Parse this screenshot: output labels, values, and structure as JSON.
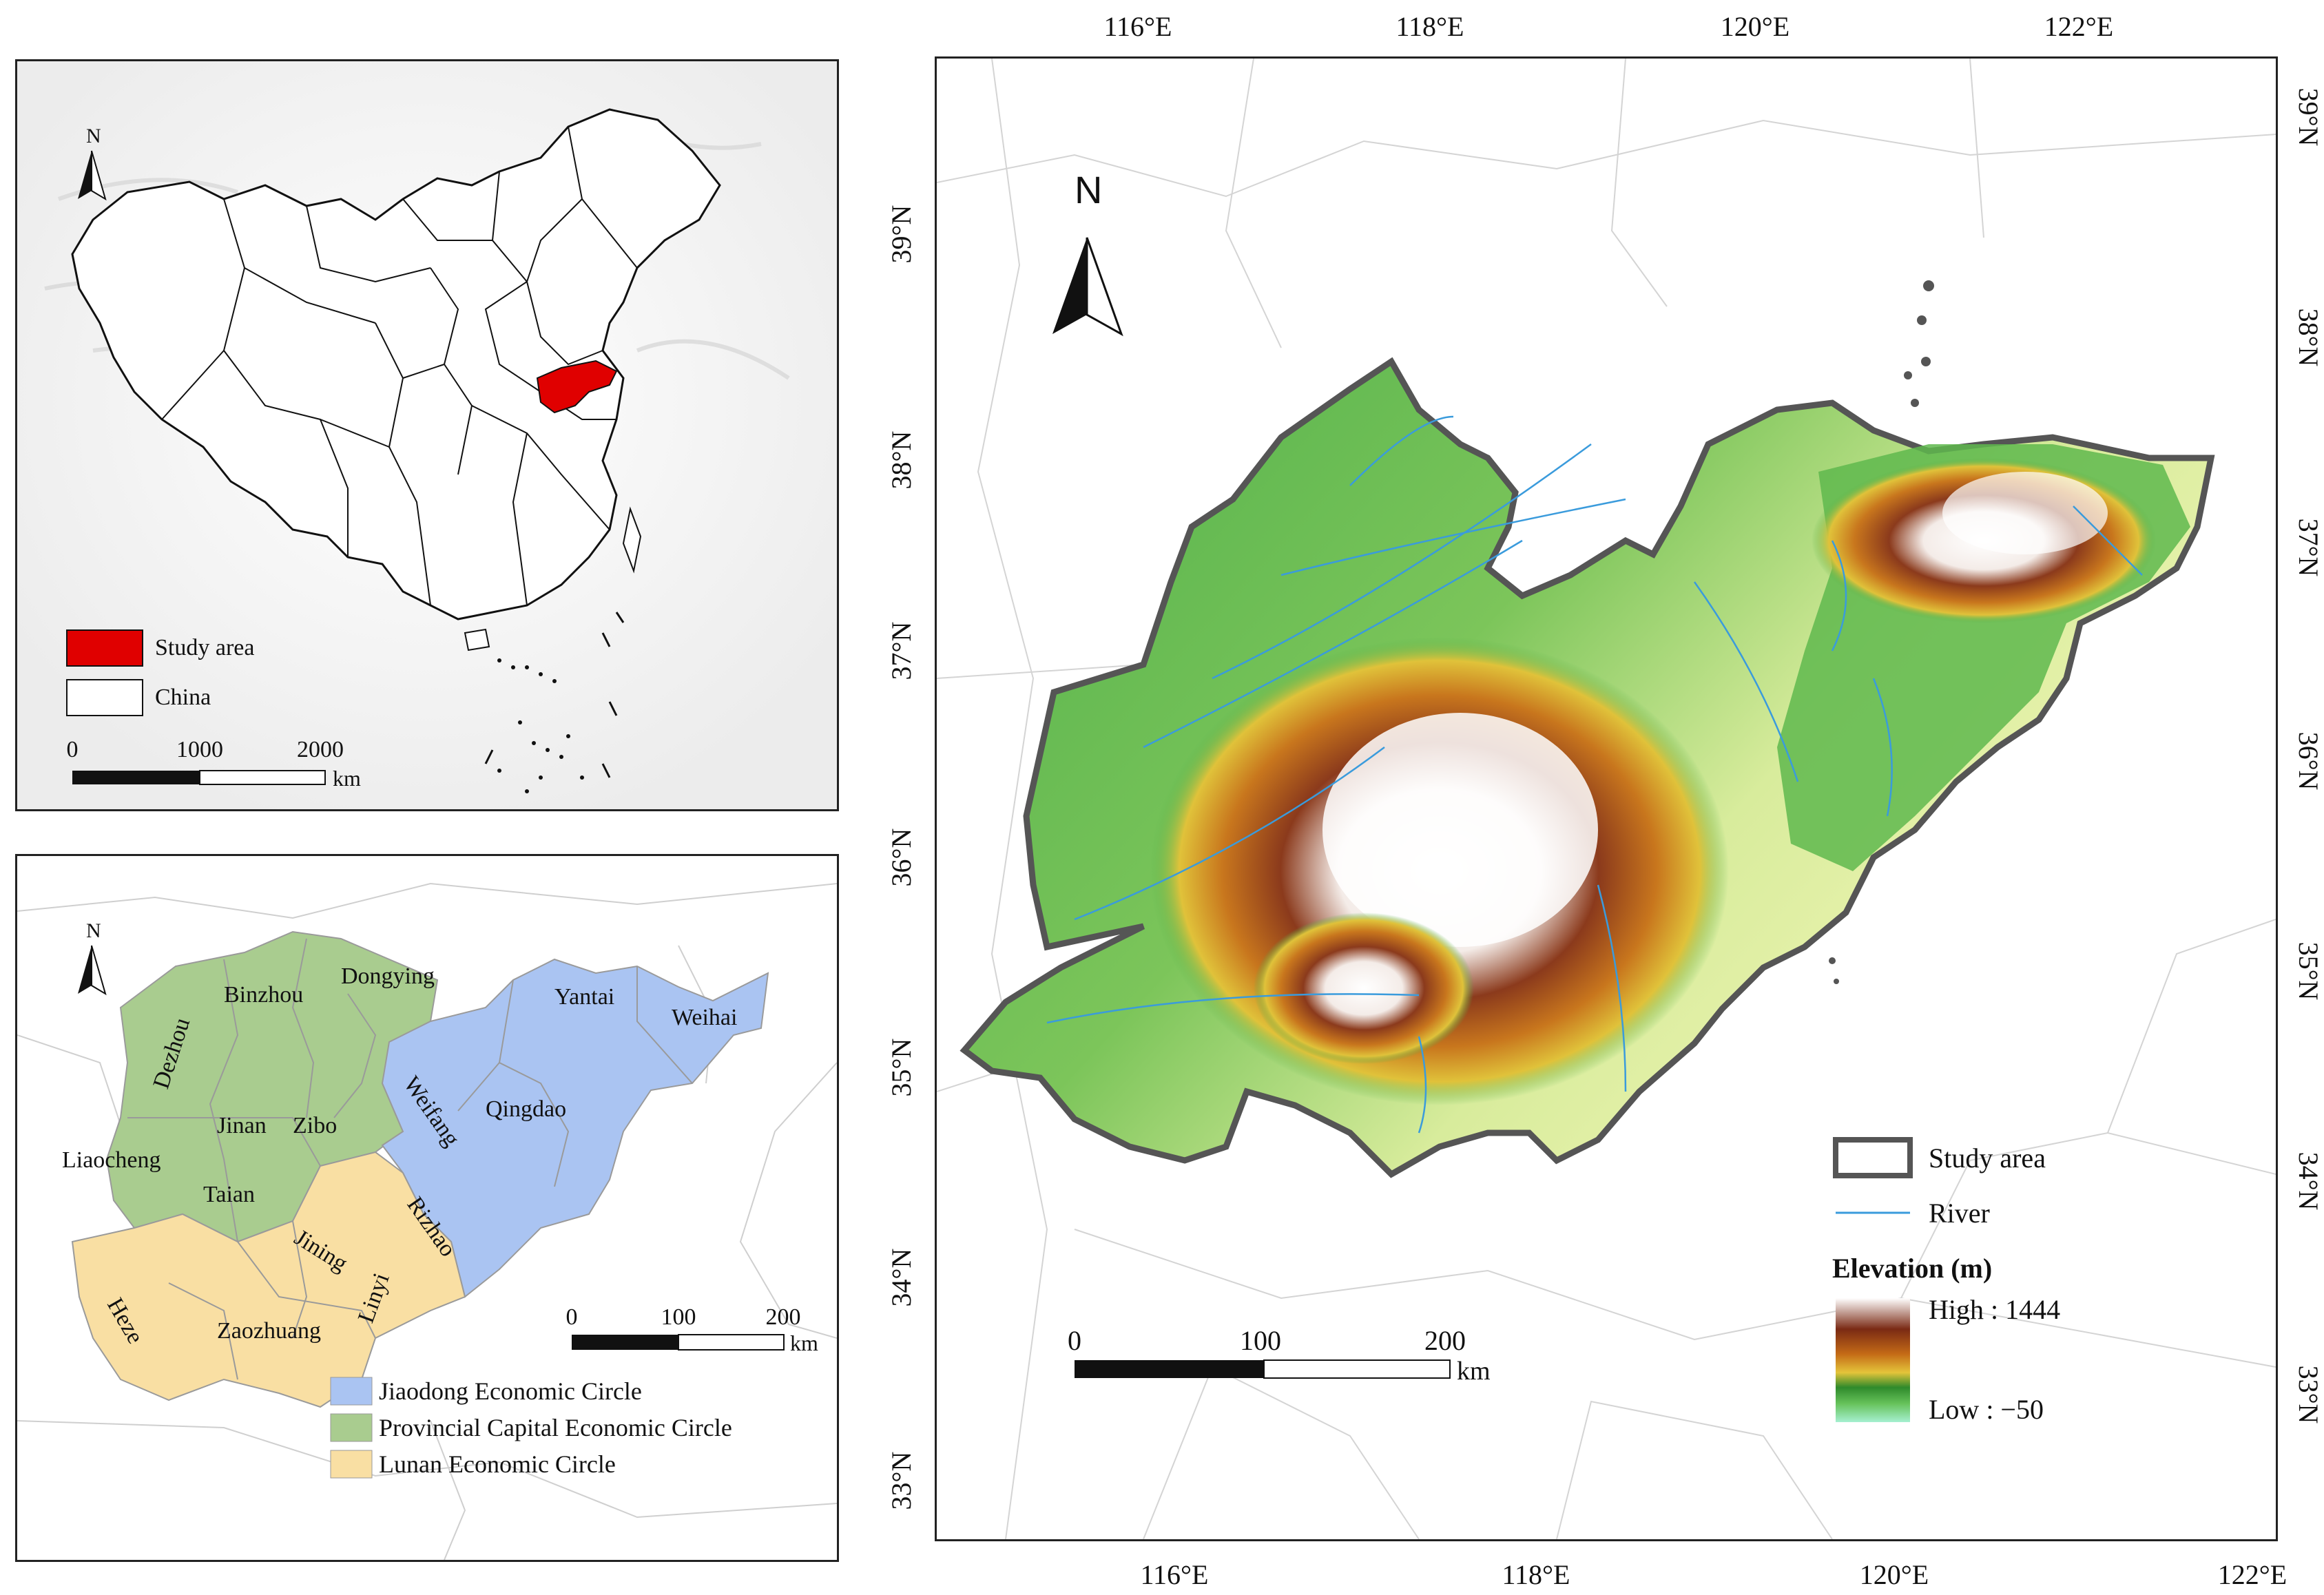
{
  "inset_china": {
    "north_label": "N",
    "legend": [
      {
        "label": "Study area",
        "color": "#e00000"
      },
      {
        "label": "China",
        "color": "#ffffff"
      }
    ],
    "scale": {
      "ticks": [
        "0",
        "1000",
        "2000"
      ],
      "unit": "km"
    }
  },
  "inset_circles": {
    "north_label": "N",
    "cities": {
      "dezhou": "Dezhou",
      "binzhou": "Binzhou",
      "dongying": "Dongying",
      "yantai": "Yantai",
      "weihai": "Weihai",
      "weifang": "Weifang",
      "qingdao": "Qingdao",
      "jinan": "Jinan",
      "zibo": "Zibo",
      "liaocheng": "Liaocheng",
      "taian": "Taian",
      "rizhao": "Rizhao",
      "jining": "Jining",
      "linyi": "Linyi",
      "heze": "Heze",
      "zaozhuang": "Zaozhuang"
    },
    "scale": {
      "ticks": [
        "0",
        "100",
        "200"
      ],
      "unit": "km"
    },
    "legend": [
      {
        "label": "Jiaodong Economic Circle",
        "color": "#aac4f2"
      },
      {
        "label": "Provincial Capital Economic Circle",
        "color": "#a9cc8f"
      },
      {
        "label": "Lunan Economic Circle",
        "color": "#f9dfa3"
      }
    ]
  },
  "main_map": {
    "north_label": "N",
    "lon_labels": [
      "116°E",
      "118°E",
      "120°E",
      "122°E"
    ],
    "lat_labels_left": [
      "39°N",
      "38°N",
      "37°N",
      "36°N",
      "35°N",
      "34°N",
      "33°N"
    ],
    "lat_labels_right": [
      "39°N",
      "38°N",
      "37°N",
      "36°N",
      "35°N",
      "34°N",
      "33°N"
    ],
    "legend": {
      "study_area": "Study area",
      "river": "River",
      "elevation_title": "Elevation (m)",
      "high": "High : 1444",
      "low": "Low : −50",
      "river_color": "#3a9bdc"
    },
    "scale": {
      "ticks": [
        "0",
        "100",
        "200"
      ],
      "unit": "km"
    }
  }
}
